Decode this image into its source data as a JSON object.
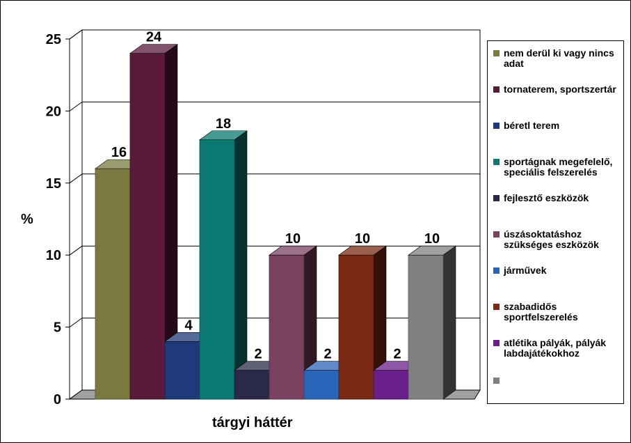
{
  "chart_data": {
    "type": "bar",
    "style": "3d",
    "title": "",
    "xlabel": "tárgyi háttér",
    "ylabel": "%",
    "ylim": [
      0,
      25
    ],
    "yticks": [
      "0",
      "5",
      "10",
      "15",
      "20",
      "25"
    ],
    "grid": true,
    "legend_position": "right",
    "series": [
      {
        "name": "nem derül ki vagy nincs adat",
        "value": 16,
        "label": "16",
        "color": "#7a7a40"
      },
      {
        "name": "tornaterem, sportszertár",
        "value": 24,
        "label": "24",
        "color": "#5a1a3a"
      },
      {
        "name": "béretl terem",
        "value": 4,
        "label": "4",
        "color": "#1e3a78"
      },
      {
        "name": "sportágnak megefelelő, speciális felszerelés",
        "value": 18,
        "label": "18",
        "color": "#0a7a72"
      },
      {
        "name": "fejlesztő eszközök",
        "value": 2,
        "label": "2",
        "color": "#2a2a48"
      },
      {
        "name": "úszásoktatáshoz szükséges eszközök",
        "value": 10,
        "label": "10",
        "color": "#7a4060"
      },
      {
        "name": "járművek",
        "value": 2,
        "label": "2",
        "color": "#2a64b8"
      },
      {
        "name": "szabadidős sportfelszerelés",
        "value": 10,
        "label": "10",
        "color": "#7a2a14"
      },
      {
        "name": "atlétika pályák, pályák labdajátékokhoz",
        "value": 2,
        "label": "2",
        "color": "#6a1e8a"
      },
      {
        "name": "",
        "value": 10,
        "label": "10",
        "color": "#808080"
      }
    ]
  }
}
